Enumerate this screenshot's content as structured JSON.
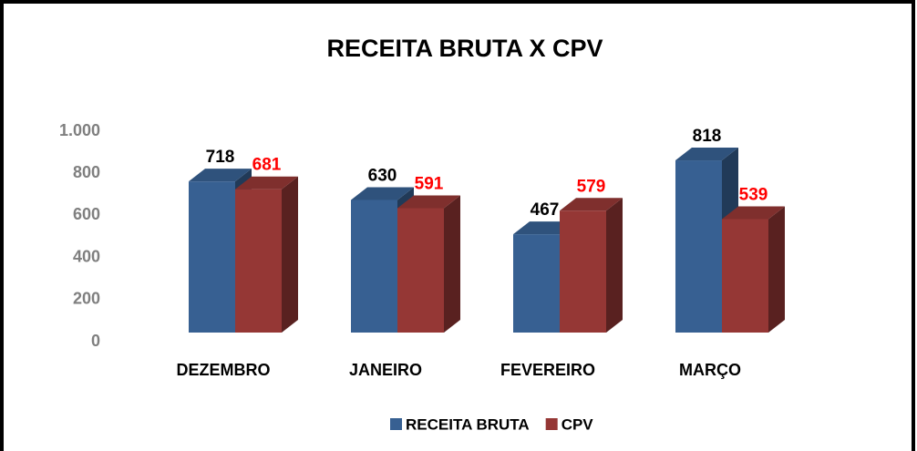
{
  "chart_data": {
    "type": "bar3d",
    "title": "RECEITA BRUTA X CPV",
    "categories": [
      "DEZEMBRO",
      "JANEIRO",
      "FEVEREIRO",
      "MARÇO"
    ],
    "series": [
      {
        "name": "RECEITA BRUTA",
        "color": "#376092",
        "label_color": "#000000",
        "values": [
          718,
          630,
          467,
          818
        ]
      },
      {
        "name": "CPV",
        "color": "#953735",
        "label_color": "#ff0000",
        "values": [
          681,
          591,
          579,
          539
        ]
      }
    ],
    "ylim": [
      0,
      1000
    ],
    "yticks": [
      0,
      200,
      400,
      600,
      800,
      {
        "value": 1000,
        "label": "1.000"
      }
    ],
    "legend": "bottom"
  }
}
